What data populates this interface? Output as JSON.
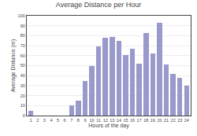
{
  "chart_data": {
    "type": "bar",
    "title": "Average Distance per Hour",
    "xlabel": "Hours of the day",
    "ylabel": "Average Distance (m)",
    "x": [
      1,
      2,
      3,
      4,
      5,
      6,
      7,
      8,
      9,
      10,
      11,
      12,
      13,
      14,
      15,
      16,
      17,
      18,
      19,
      20,
      21,
      22,
      23,
      24
    ],
    "values": [
      5,
      0,
      0,
      0,
      0,
      0,
      10,
      15,
      35,
      50,
      69,
      78,
      79,
      75,
      61,
      67,
      52,
      83,
      62,
      93,
      51,
      42,
      38,
      30
    ],
    "color": "#9999cc",
    "xlim": [
      0.4,
      24.6
    ],
    "xticks": [
      1,
      2,
      3,
      4,
      5,
      6,
      7,
      8,
      9,
      10,
      11,
      12,
      13,
      14,
      15,
      16,
      17,
      18,
      19,
      20,
      21,
      22,
      23,
      24
    ],
    "ylim": [
      0,
      100
    ],
    "yticks": [
      0,
      10,
      20,
      30,
      40,
      50,
      60,
      70,
      80,
      90,
      100
    ],
    "grid": "y"
  }
}
